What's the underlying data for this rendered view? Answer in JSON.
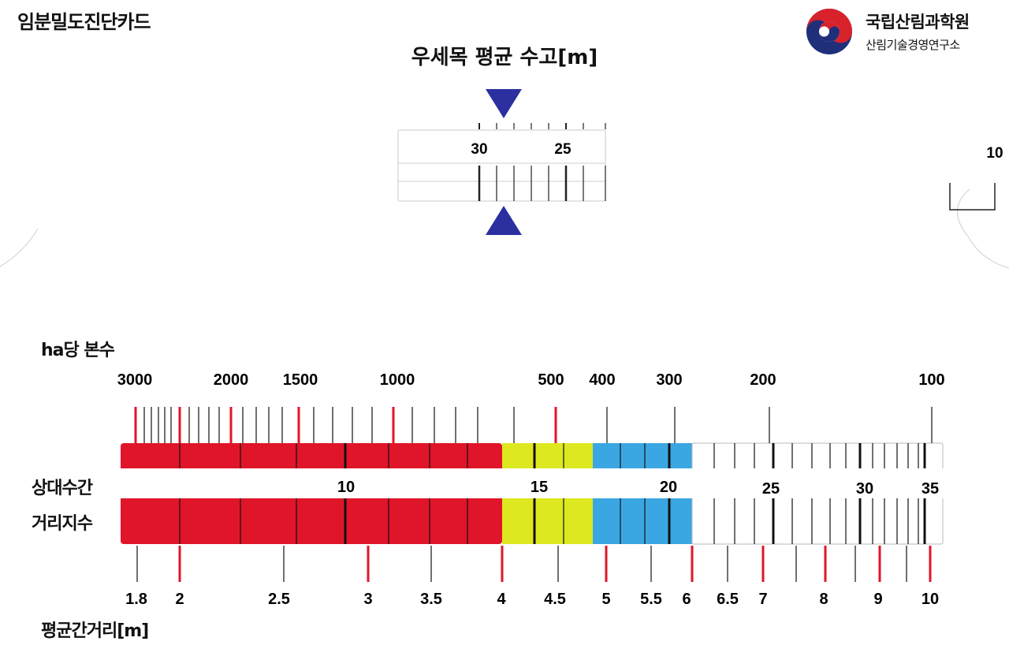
{
  "header": {
    "card_title": "임분밀도진단카드",
    "org_name": "국립산림과학원",
    "org_dept": "산림기술경영연구소"
  },
  "dial": {
    "title": "우세목 평균 수고[m]",
    "labels": [
      "30",
      "25"
    ],
    "right_label": "10"
  },
  "scale": {
    "trees_per_ha_label": "ha당 본수",
    "relative_spacing_label_line1": "상대수간",
    "relative_spacing_label_line2": "거리지수",
    "mean_spacing_label": "평균간거리[m]",
    "top_values": [
      "3000",
      "2000",
      "1500",
      "1000",
      "500",
      "400",
      "300",
      "200",
      "100"
    ],
    "index_values": [
      "10",
      "15",
      "20",
      "25",
      "30",
      "35"
    ],
    "bottom_values": [
      "1.8",
      "2",
      "2.5",
      "3",
      "3.5",
      "4",
      "4.5",
      "5",
      "5.5",
      "6",
      "6.5",
      "7",
      "8",
      "9",
      "10"
    ]
  },
  "colors": {
    "red": "#e0152a",
    "yellow": "#dde820",
    "blue": "#3aa7e3",
    "indicator": "#2b2fa0",
    "logo_red": "#d8222b",
    "logo_blue": "#1f2f7a"
  }
}
